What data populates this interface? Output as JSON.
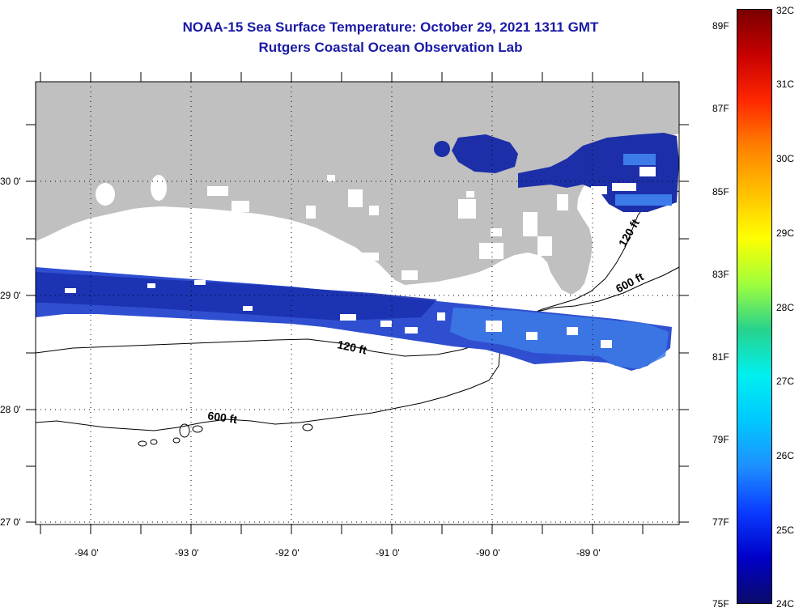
{
  "title": {
    "line1": "NOAA-15 Sea Surface Temperature:  October 29, 2021 1311 GMT",
    "line2": "Rutgers Coastal Ocean Observation Lab"
  },
  "map": {
    "region": "Northern Gulf of Mexico (Louisiana coast)",
    "colors": {
      "land": "#c0c0c0",
      "water": "#ffffff",
      "sst_low": "#1c2fa8",
      "sst_high": "#3a7ee6"
    },
    "latitude_labels": [
      "30 0'",
      "29 0'",
      "28 0'",
      "27 0'"
    ],
    "longitude_labels": [
      "-94 0'",
      "-93 0'",
      "-92 0'",
      "-91 0'",
      "-90 0'",
      "-89 0'"
    ],
    "contour_labels": [
      "120 ft",
      "600 ft",
      "120 ft",
      "600 ft"
    ],
    "grid": "dotted"
  },
  "colorbar": {
    "min_c": 24,
    "max_c": 32,
    "celsius_labels": [
      "32C",
      "31C",
      "30C",
      "29C",
      "28C",
      "27C",
      "26C",
      "25C",
      "24C"
    ],
    "fahrenheit_labels": [
      "89F",
      "87F",
      "85F",
      "83F",
      "81F",
      "79F",
      "77F",
      "75F"
    ],
    "colormap": [
      "#0b0b6b",
      "#0000c8",
      "#0a3cff",
      "#1e90ff",
      "#00c8ff",
      "#00f0f0",
      "#28d28c",
      "#a0ff3c",
      "#ffff00",
      "#ffc000",
      "#ff8000",
      "#ff2800",
      "#c80000",
      "#7a0000"
    ]
  }
}
